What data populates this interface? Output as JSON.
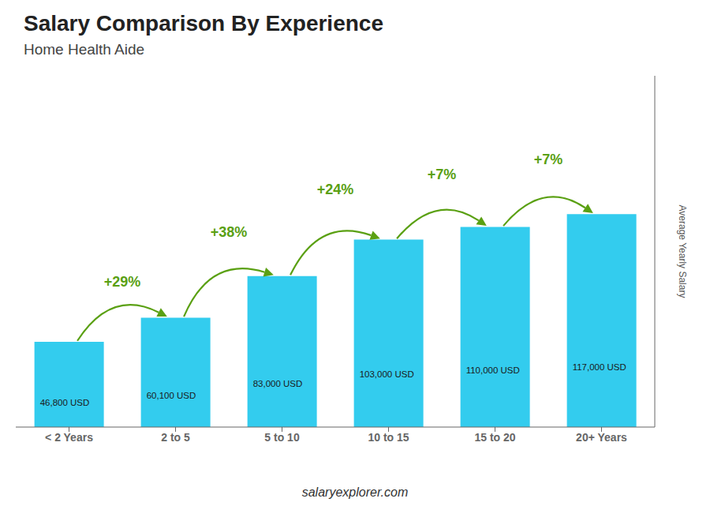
{
  "chart_data": {
    "type": "bar",
    "title": "Salary Comparison By Experience",
    "subtitle": "Home Health Aide",
    "ylabel": "Average Yearly Salary",
    "footer": "salaryexplorer.com",
    "categories": [
      "< 2 Years",
      "2 to 5",
      "5 to 10",
      "10 to 15",
      "15 to 20",
      "20+ Years"
    ],
    "values": [
      46800,
      60100,
      83000,
      103000,
      110000,
      117000
    ],
    "value_labels": [
      "46,800 USD",
      "60,100 USD",
      "83,000 USD",
      "103,000 USD",
      "110,000 USD",
      "117,000 USD"
    ],
    "annotations": [
      "+29%",
      "+38%",
      "+24%",
      "+7%",
      "+7%"
    ],
    "color": "#33ccee",
    "ylim": [
      0,
      193050
    ],
    "grid": false,
    "data_labels": true,
    "tick_labels": "x"
  }
}
